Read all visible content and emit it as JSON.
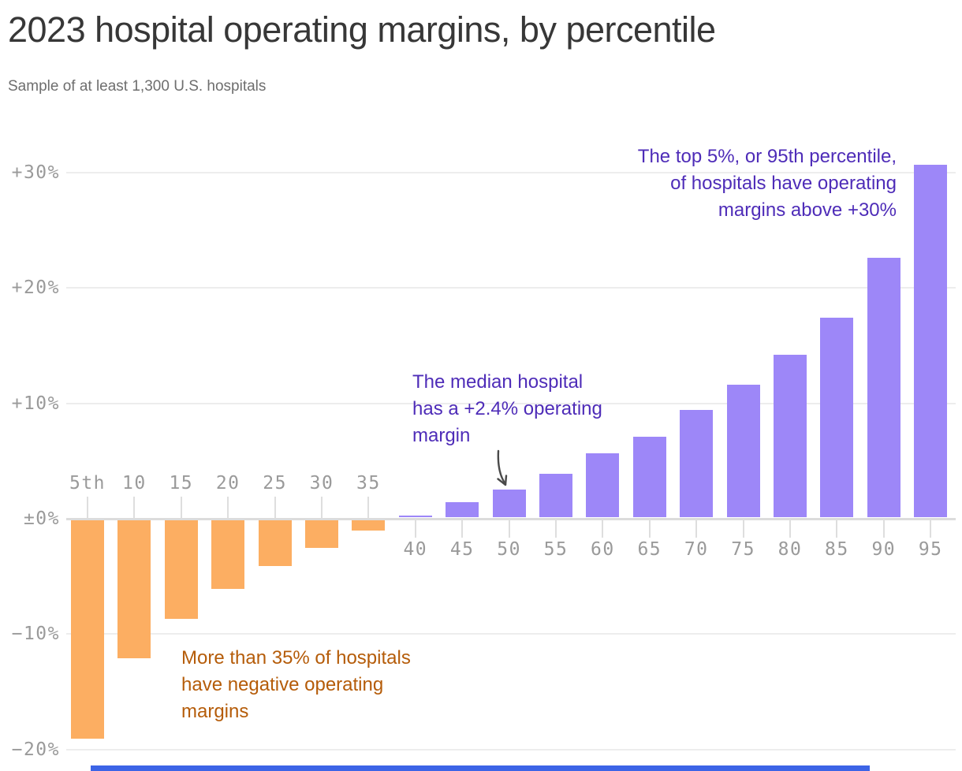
{
  "title": "2023 hospital operating margins, by percentile",
  "subtitle": "Sample of at least 1,300 U.S. hospitals",
  "annotations": {
    "top": {
      "lines": [
        "The top 5%, or 95th percentile,",
        "of hospitals have operating",
        "margins above +30%"
      ],
      "color": "#4e2cb8"
    },
    "median": {
      "lines": [
        "The median hospital",
        "has a +2.4% operating",
        "margin"
      ],
      "color": "#4e2cb8"
    },
    "negative": {
      "lines": [
        "More than 35% of hospitals",
        "have negative operating",
        "margins"
      ],
      "color": "#b55c09"
    }
  },
  "chart_data": {
    "type": "bar",
    "categories": [
      "5th",
      "10",
      "15",
      "20",
      "25",
      "30",
      "35",
      "40",
      "45",
      "50",
      "55",
      "60",
      "65",
      "70",
      "75",
      "80",
      "85",
      "90",
      "95"
    ],
    "values": [
      -19,
      -12,
      -8.6,
      -6,
      -4,
      -2.4,
      -0.9,
      0.2,
      1.3,
      2.4,
      3.8,
      5.6,
      7,
      9.3,
      11.5,
      14.1,
      17.3,
      22.5,
      30.6
    ],
    "title": "2023 hospital operating margins, by percentile",
    "xlabel": "",
    "ylabel": "",
    "ylim": [
      -20,
      32
    ],
    "y_ticks": [
      {
        "label": "+30%",
        "value": 30
      },
      {
        "label": "+20%",
        "value": 20
      },
      {
        "label": "+10%",
        "value": 10
      },
      {
        "label": "±0%",
        "value": 0
      },
      {
        "label": "−10%",
        "value": -10
      },
      {
        "label": "−20%",
        "value": -20
      }
    ],
    "grid": "horizontal gridlines only",
    "legend": "none",
    "bar_color_negative": "#fcae62",
    "bar_color_positive": "#9d87f8"
  },
  "colors": {
    "title_text": "#373737",
    "subtitle_text": "#6e6e6e",
    "axis_label_text": "#9a9a9a",
    "gridline": "#ededed",
    "axis_line": "#dcdcdc",
    "arrow": "#4a4a4a",
    "bottom_strip": "#3c64e6"
  }
}
